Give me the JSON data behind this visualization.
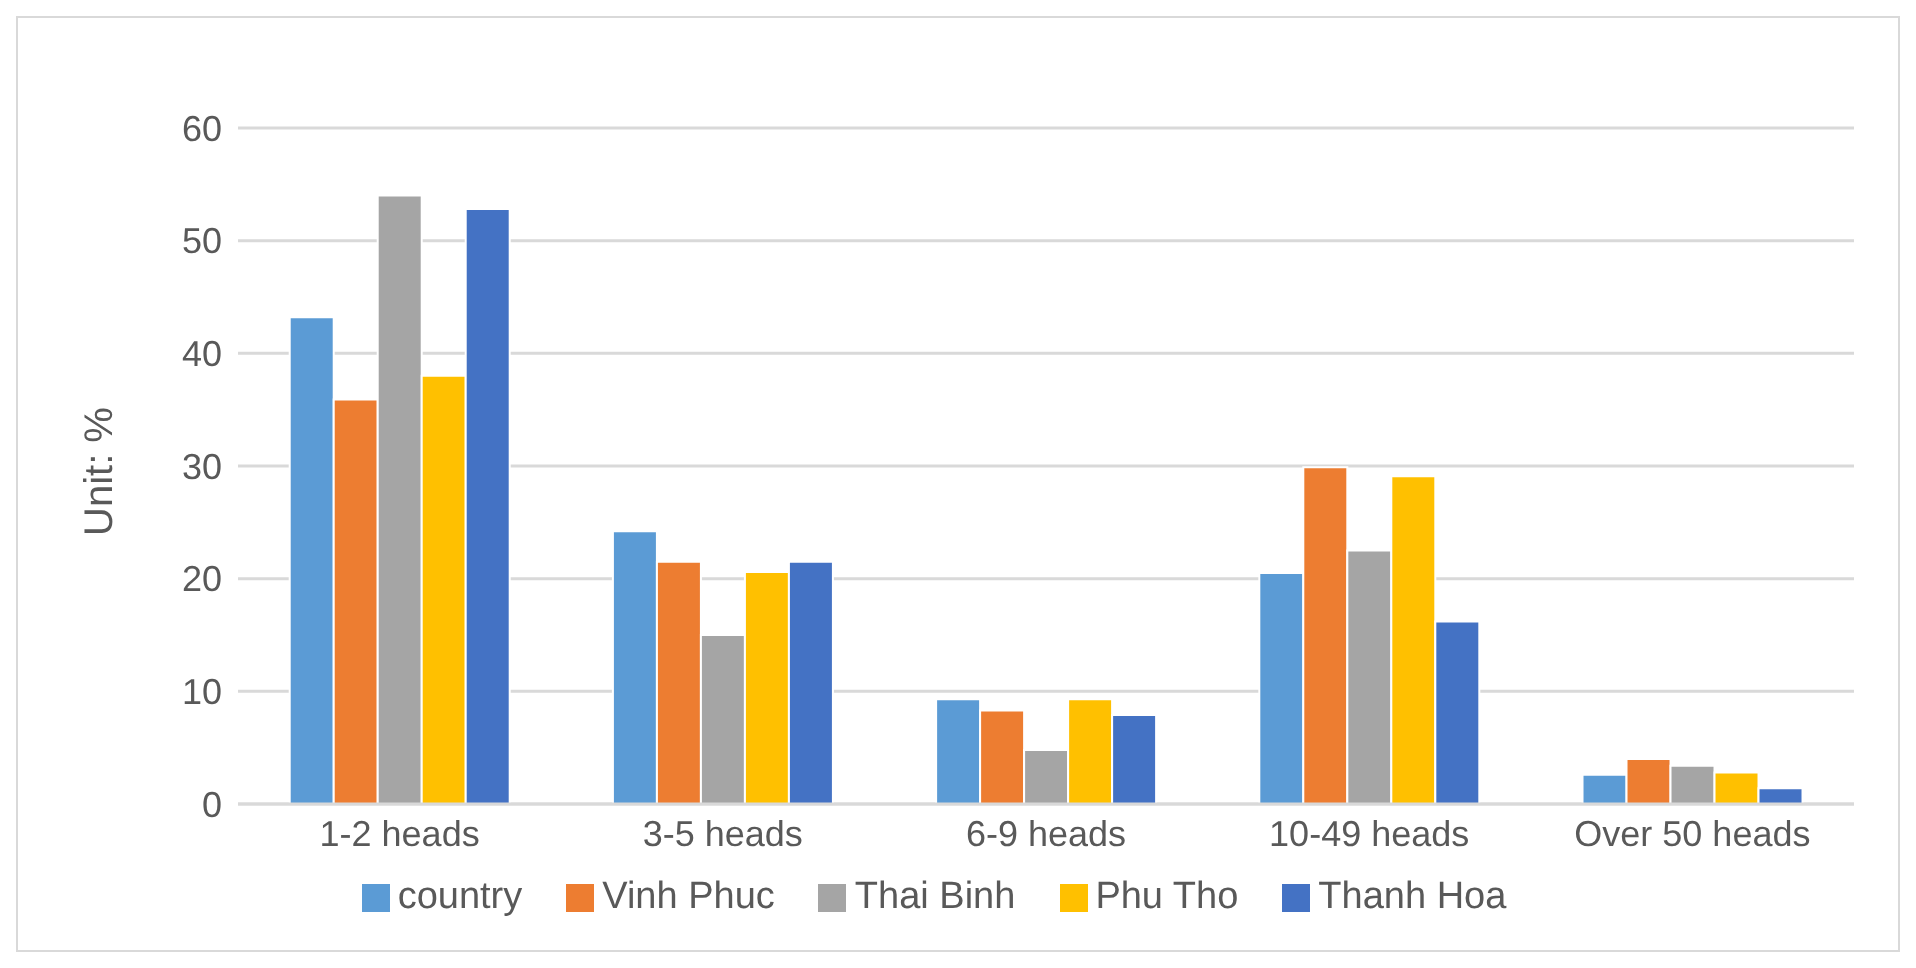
{
  "chart_data": {
    "type": "bar",
    "ylabel": "Unit: %",
    "categories": [
      "1-2 heads",
      "3-5 heads",
      "6-9 heads",
      "10-49 heads",
      "Over 50 heads"
    ],
    "series": [
      {
        "name": "country",
        "color": "#5b9bd5",
        "values": [
          43.2,
          24.2,
          9.3,
          20.5,
          2.6
        ]
      },
      {
        "name": "Vinh Phuc",
        "color": "#ed7d31",
        "values": [
          35.9,
          21.5,
          8.3,
          29.9,
          4.0
        ]
      },
      {
        "name": "Thai Binh",
        "color": "#a5a5a5",
        "values": [
          54.0,
          15.0,
          4.8,
          22.5,
          3.4
        ]
      },
      {
        "name": "Phu Tho",
        "color": "#ffc000",
        "values": [
          38.0,
          20.6,
          9.3,
          29.1,
          2.8
        ]
      },
      {
        "name": "Thanh Hoa",
        "color": "#4472c4",
        "values": [
          52.8,
          21.5,
          7.9,
          16.2,
          1.4
        ]
      }
    ],
    "ylim": [
      0,
      60
    ],
    "yticks": [
      0,
      10,
      20,
      30,
      40,
      50,
      60
    ],
    "grid": "y",
    "legend": "bottom"
  }
}
